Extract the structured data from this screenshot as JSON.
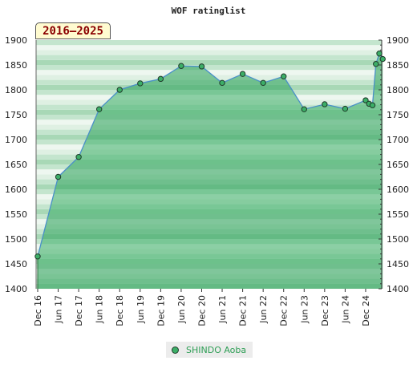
{
  "chart_data": {
    "type": "area",
    "title": "WOF ratinglist",
    "range_label": "2016–2025",
    "xlabel": "",
    "ylabel": "",
    "ylim": [
      1400,
      1900
    ],
    "yticks": [
      1400,
      1450,
      1500,
      1550,
      1600,
      1650,
      1700,
      1750,
      1800,
      1850,
      1900
    ],
    "xlim": [
      "2016-12",
      "2025-04"
    ],
    "xtick_labels": [
      "Dec 16",
      "Jun 17",
      "Dec 17",
      "Jun 18",
      "Dec 18",
      "Jun 19",
      "Dec 19",
      "Jun 20",
      "Dec 20",
      "Jun 21",
      "Dec 21",
      "Jun 22",
      "Dec 22",
      "Jun 23",
      "Dec 23",
      "Jun 24",
      "Dec 24"
    ],
    "grid": true,
    "legend_position": "bottom-center",
    "series": [
      {
        "name": "SHINDO Aoba",
        "color": "#3cae67",
        "x": [
          "2016-12",
          "2017-06",
          "2017-12",
          "2018-06",
          "2018-12",
          "2019-06",
          "2019-12",
          "2020-06",
          "2020-12",
          "2021-06",
          "2021-12",
          "2022-06",
          "2022-12",
          "2023-06",
          "2023-12",
          "2024-06",
          "2024-12",
          "2025-01",
          "2025-02",
          "2025-03",
          "2025-04",
          "2025-05"
        ],
        "values": [
          1465,
          1625,
          1665,
          1761,
          1800,
          1813,
          1822,
          1848,
          1847,
          1814,
          1832,
          1814,
          1827,
          1761,
          1771,
          1762,
          1779,
          1772,
          1769,
          1852,
          1873,
          1862
        ]
      }
    ]
  }
}
